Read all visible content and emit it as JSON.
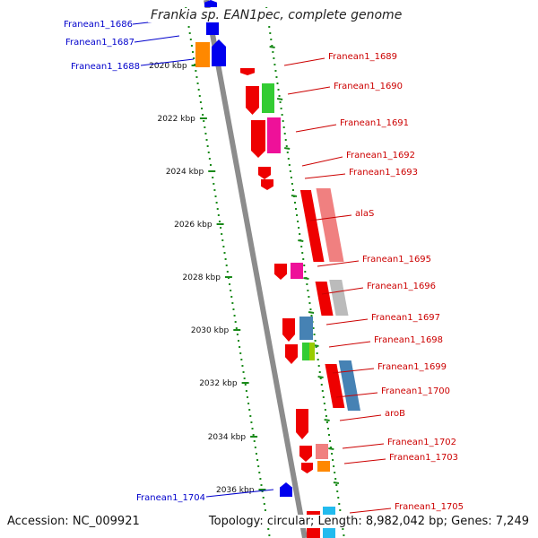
{
  "title": "Frankia sp. EAN1pec, complete genome",
  "footer": {
    "accession": "Accession: NC_009921",
    "topology": "Topology: circular; Length: 8,982,042 bp; Genes: 7,249"
  },
  "ruler": [
    {
      "label": "2020 kbp"
    },
    {
      "label": "2022 kbp"
    },
    {
      "label": "2024 kbp"
    },
    {
      "label": "2026 kbp"
    },
    {
      "label": "2028 kbp"
    },
    {
      "label": "2030 kbp"
    },
    {
      "label": "2032 kbp"
    },
    {
      "label": "2034 kbp"
    },
    {
      "label": "2036 kbp"
    }
  ],
  "left_genes": [
    {
      "name": "Franean1_1686",
      "color": "#0000ee"
    },
    {
      "name": "Franean1_1687",
      "color": "#0000ee"
    },
    {
      "name": "Franean1_1688",
      "color": "#0000ee"
    },
    {
      "name": "Franean1_1704",
      "color": "#0000ee"
    }
  ],
  "right_genes": [
    {
      "name": "Franean1_1689",
      "color": "#e00000"
    },
    {
      "name": "Franean1_1690",
      "color": "#e00000"
    },
    {
      "name": "Franean1_1691",
      "color": "#e00000"
    },
    {
      "name": "Franean1_1692",
      "color": "#e00000"
    },
    {
      "name": "Franean1_1693",
      "color": "#e00000"
    },
    {
      "name": "alaS",
      "color": "#e00000"
    },
    {
      "name": "Franean1_1695",
      "color": "#e00000"
    },
    {
      "name": "Franean1_1696",
      "color": "#e00000"
    },
    {
      "name": "Franean1_1697",
      "color": "#e00000"
    },
    {
      "name": "Franean1_1698",
      "color": "#e00000"
    },
    {
      "name": "Franean1_1699",
      "color": "#e00000"
    },
    {
      "name": "Franean1_1700",
      "color": "#e00000"
    },
    {
      "name": "aroB",
      "color": "#e00000"
    },
    {
      "name": "Franean1_1702",
      "color": "#e00000"
    },
    {
      "name": "Franean1_1703",
      "color": "#e00000"
    },
    {
      "name": "Franean1_1705",
      "color": "#e00000"
    }
  ],
  "colors": {
    "backbone": "#8c8c8c",
    "ruler_dots": "#1a8a1a",
    "forward_strand": "#ee0000",
    "reverse_strand": "#0000ee",
    "cog_orange": "#ff8800",
    "cog_green": "#33cc33",
    "cog_magenta": "#ee1199",
    "cog_pink": "#f08080",
    "cog_gray": "#bbbbbb",
    "cog_steelblue": "#4682b4",
    "cog_lime": "#99cc00",
    "cog_cyan": "#22bbee",
    "left_label_color": "#0000cc",
    "right_label_color": "#cc0000"
  }
}
